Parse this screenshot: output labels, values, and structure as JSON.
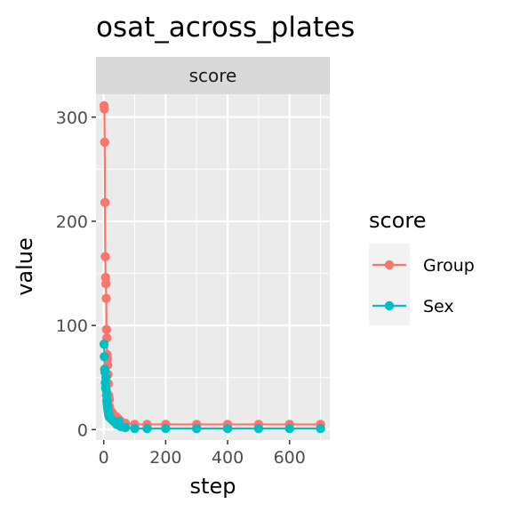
{
  "chart_data": {
    "type": "line",
    "title": "osat_across_plates",
    "facet_label": "score",
    "xlabel": "step",
    "ylabel": "value",
    "xlim": [
      -25,
      730
    ],
    "ylim": [
      -10,
      322
    ],
    "x_ticks": [
      0,
      200,
      400,
      600
    ],
    "y_ticks": [
      0,
      100,
      200,
      300
    ],
    "grid": true,
    "markers": true,
    "legend": {
      "title": "score",
      "position": "right"
    },
    "series": [
      {
        "name": "Group",
        "color": "#F8766D",
        "x": [
          1,
          2,
          3,
          4,
          5,
          6,
          7,
          8,
          9,
          10,
          11,
          12,
          13,
          14,
          15,
          16,
          17,
          18,
          19,
          20,
          22,
          25,
          28,
          32,
          36,
          42,
          48,
          55,
          70,
          100,
          140,
          200,
          300,
          400,
          500,
          600,
          700
        ],
        "values": [
          311,
          308,
          276,
          218,
          166,
          146,
          140,
          126,
          96,
          88,
          72,
          68,
          62,
          53,
          44,
          33,
          30,
          29,
          22,
          19,
          18,
          17,
          16,
          14,
          13,
          12,
          10,
          8,
          6,
          5,
          5,
          5,
          5,
          5,
          5,
          5,
          5
        ]
      },
      {
        "name": "Sex",
        "color": "#00BFC4",
        "x": [
          1,
          2,
          3,
          4,
          5,
          6,
          7,
          8,
          9,
          10,
          11,
          12,
          13,
          14,
          15,
          16,
          17,
          18,
          20,
          22,
          25,
          28,
          32,
          36,
          42,
          48,
          55,
          70,
          100,
          140,
          200,
          300,
          400,
          500,
          600,
          700
        ],
        "values": [
          82,
          70,
          58,
          55,
          45,
          40,
          50,
          38,
          33,
          28,
          25,
          22,
          20,
          18,
          16,
          14,
          13,
          12,
          12,
          11,
          10,
          9,
          8,
          7,
          5,
          8,
          3,
          2,
          1,
          1,
          1,
          1,
          1,
          1,
          1,
          1
        ]
      }
    ]
  }
}
